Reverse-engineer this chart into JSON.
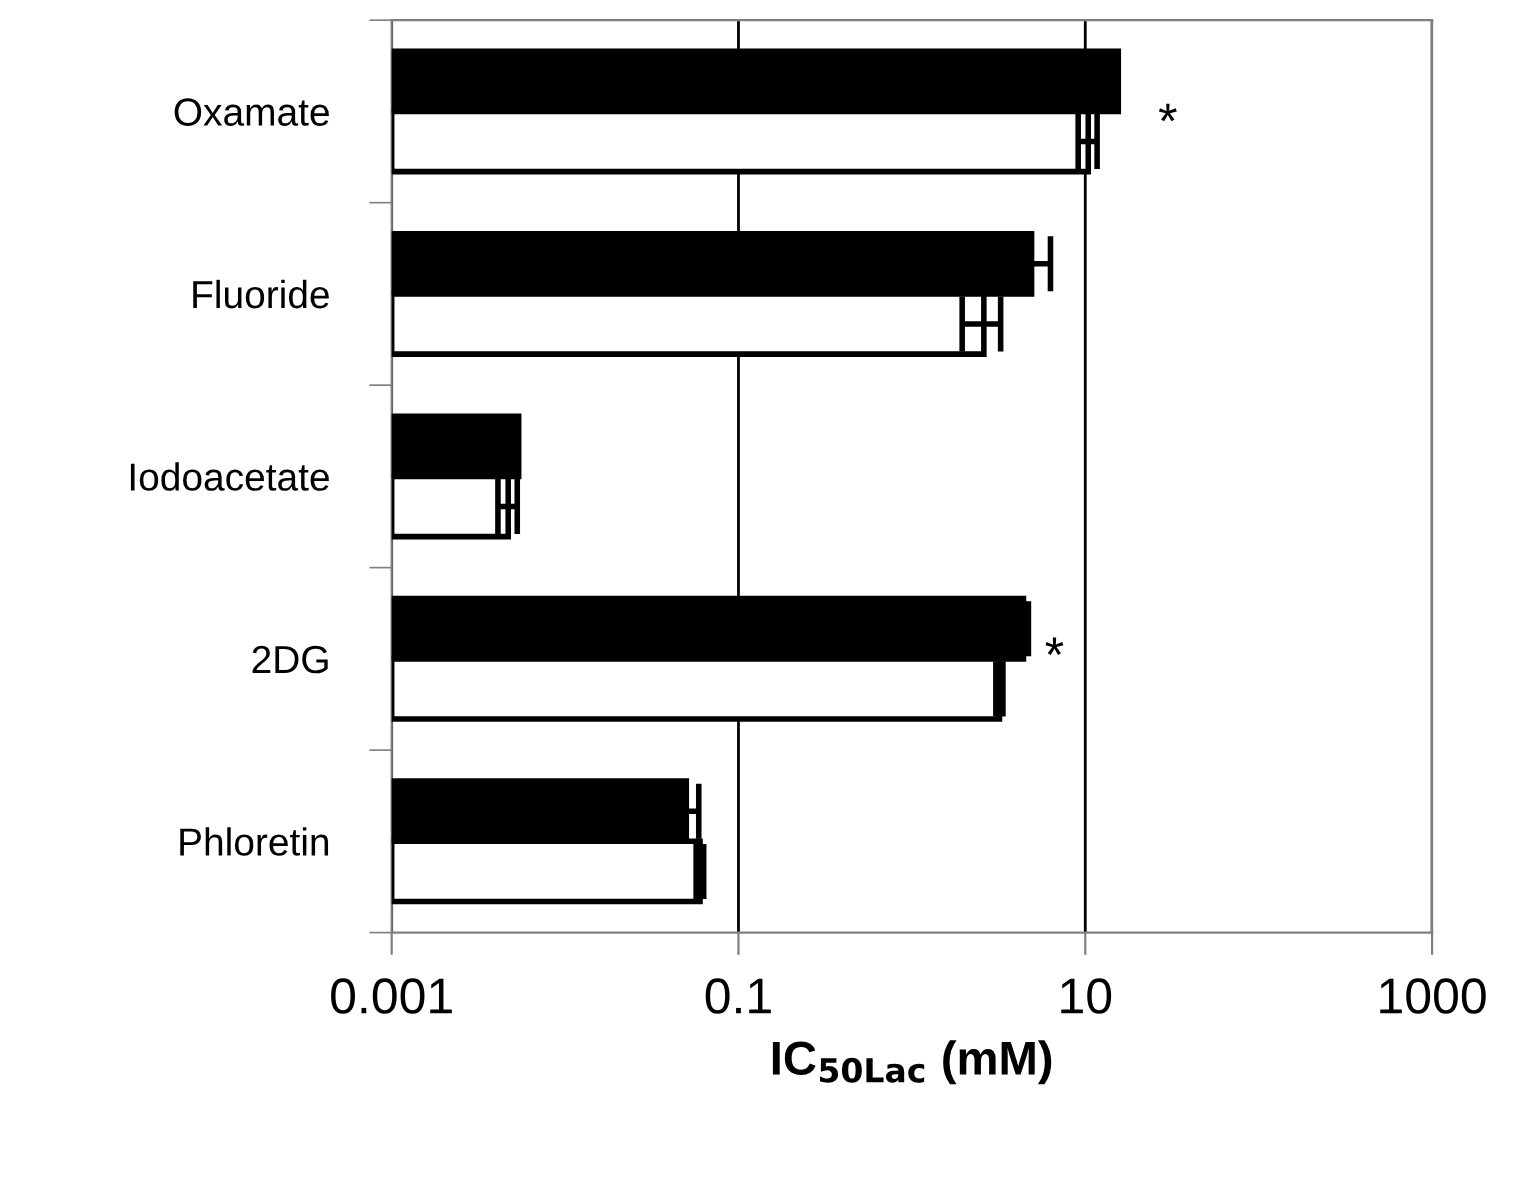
{
  "chart_data": {
    "type": "bar",
    "orientation": "horizontal",
    "categories": [
      "Oxamate",
      "Fluoride",
      "Iodoacetate",
      "2DG",
      "Phloretin"
    ],
    "series": [
      {
        "color": "#000000",
        "values": [
          15.5,
          4.9,
          0.0054,
          4.4,
          0.05
        ],
        "errors": [
          null,
          1.4,
          null,
          0.3,
          0.009
        ]
      },
      {
        "color": "#ffffff",
        "values": [
          10.4,
          2.6,
          0.0047,
          3.2,
          0.06
        ],
        "errors": [
          1.3,
          0.65,
          0.0006,
          0.15,
          0.003
        ]
      }
    ],
    "xlabel": "IC$_{50Lac}$ (mM)",
    "log": "x",
    "xlim": [
      0.001,
      1000
    ],
    "xticks": [
      0.001,
      0.1,
      10,
      1000
    ],
    "grid": "x",
    "annotations": [
      "*",
      "*"
    ]
  }
}
